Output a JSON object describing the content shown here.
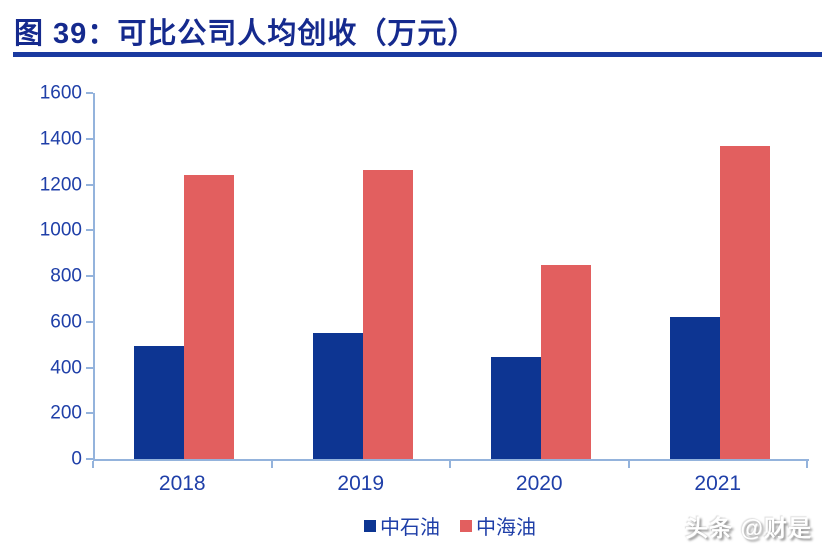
{
  "header": {
    "title": "图 39：可比公司人均创收（万元）"
  },
  "chart_data": {
    "type": "bar",
    "title": "图 39：可比公司人均创收（万元）",
    "categories": [
      "2018",
      "2019",
      "2020",
      "2021"
    ],
    "series": [
      {
        "name": "中石油",
        "color": "#0d3592",
        "values": [
          495,
          550,
          445,
          620
        ]
      },
      {
        "name": "中海油",
        "color": "#e25f5f",
        "values": [
          1240,
          1265,
          850,
          1370
        ]
      }
    ],
    "xlabel": "",
    "ylabel": "",
    "ylim": [
      0,
      1600
    ],
    "y_ticks": [
      0,
      200,
      400,
      600,
      800,
      1000,
      1200,
      1400,
      1600
    ],
    "grid": false,
    "legend_position": "bottom"
  },
  "footer": {
    "watermark": "头条 @财是"
  },
  "colors": {
    "title_text": "#152a8e",
    "title_rule": "#1a3aa0",
    "axis_line": "#94b3dc",
    "tick_label": "#1f3fa8"
  }
}
